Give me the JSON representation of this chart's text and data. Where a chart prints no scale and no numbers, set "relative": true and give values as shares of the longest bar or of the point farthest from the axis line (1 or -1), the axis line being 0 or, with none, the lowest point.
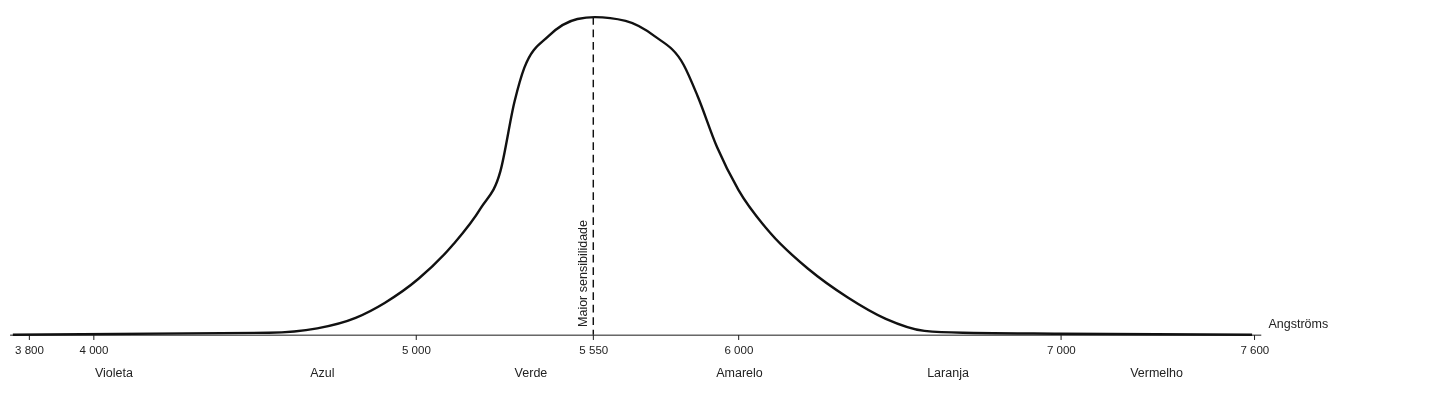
{
  "chart_data": {
    "type": "line",
    "relative": true,
    "xlabel": "Angströms",
    "xlim": [
      3740,
      7620
    ],
    "xticks": [
      {
        "value": 3800,
        "label": "3 800"
      },
      {
        "value": 4000,
        "label": "4 000"
      },
      {
        "value": 5000,
        "label": "5 000"
      },
      {
        "value": 5550,
        "label": "5 550"
      },
      {
        "value": 6000,
        "label": "6 000"
      },
      {
        "value": 7000,
        "label": "7 000"
      },
      {
        "value": 7600,
        "label": "7 600"
      }
    ],
    "x": [
      3750,
      4544,
      4694,
      4813,
      4903,
      5008,
      5112,
      5202,
      5262,
      5306,
      5336,
      5411,
      5501,
      5555,
      5650,
      5740,
      5830,
      5874,
      5934,
      6000,
      6099,
      6218,
      6338,
      6457,
      6577,
      6696,
      6995,
      7593
    ],
    "series": [
      {
        "color": "#111111",
        "values": [
          0,
          0.006,
          0.02,
          0.053,
          0.1,
          0.176,
          0.28,
          0.4,
          0.515,
          0.735,
          0.84,
          0.94,
          0.994,
          1,
          0.988,
          0.94,
          0.85,
          0.75,
          0.59,
          0.456,
          0.32,
          0.206,
          0.118,
          0.05,
          0.012,
          0.006,
          0.003,
          0
        ]
      }
    ],
    "ref_lines": [
      {
        "axis": "x",
        "value": 5550,
        "label": "Maior sensibilidade",
        "line_style": "dashed",
        "color": "#111111"
      }
    ],
    "annotations": [
      "Violeta",
      "Azul",
      "Verde",
      "Amarelo",
      "Laranja",
      "Vermelho"
    ],
    "grid": false,
    "marker": "none",
    "line_style": "solid"
  }
}
